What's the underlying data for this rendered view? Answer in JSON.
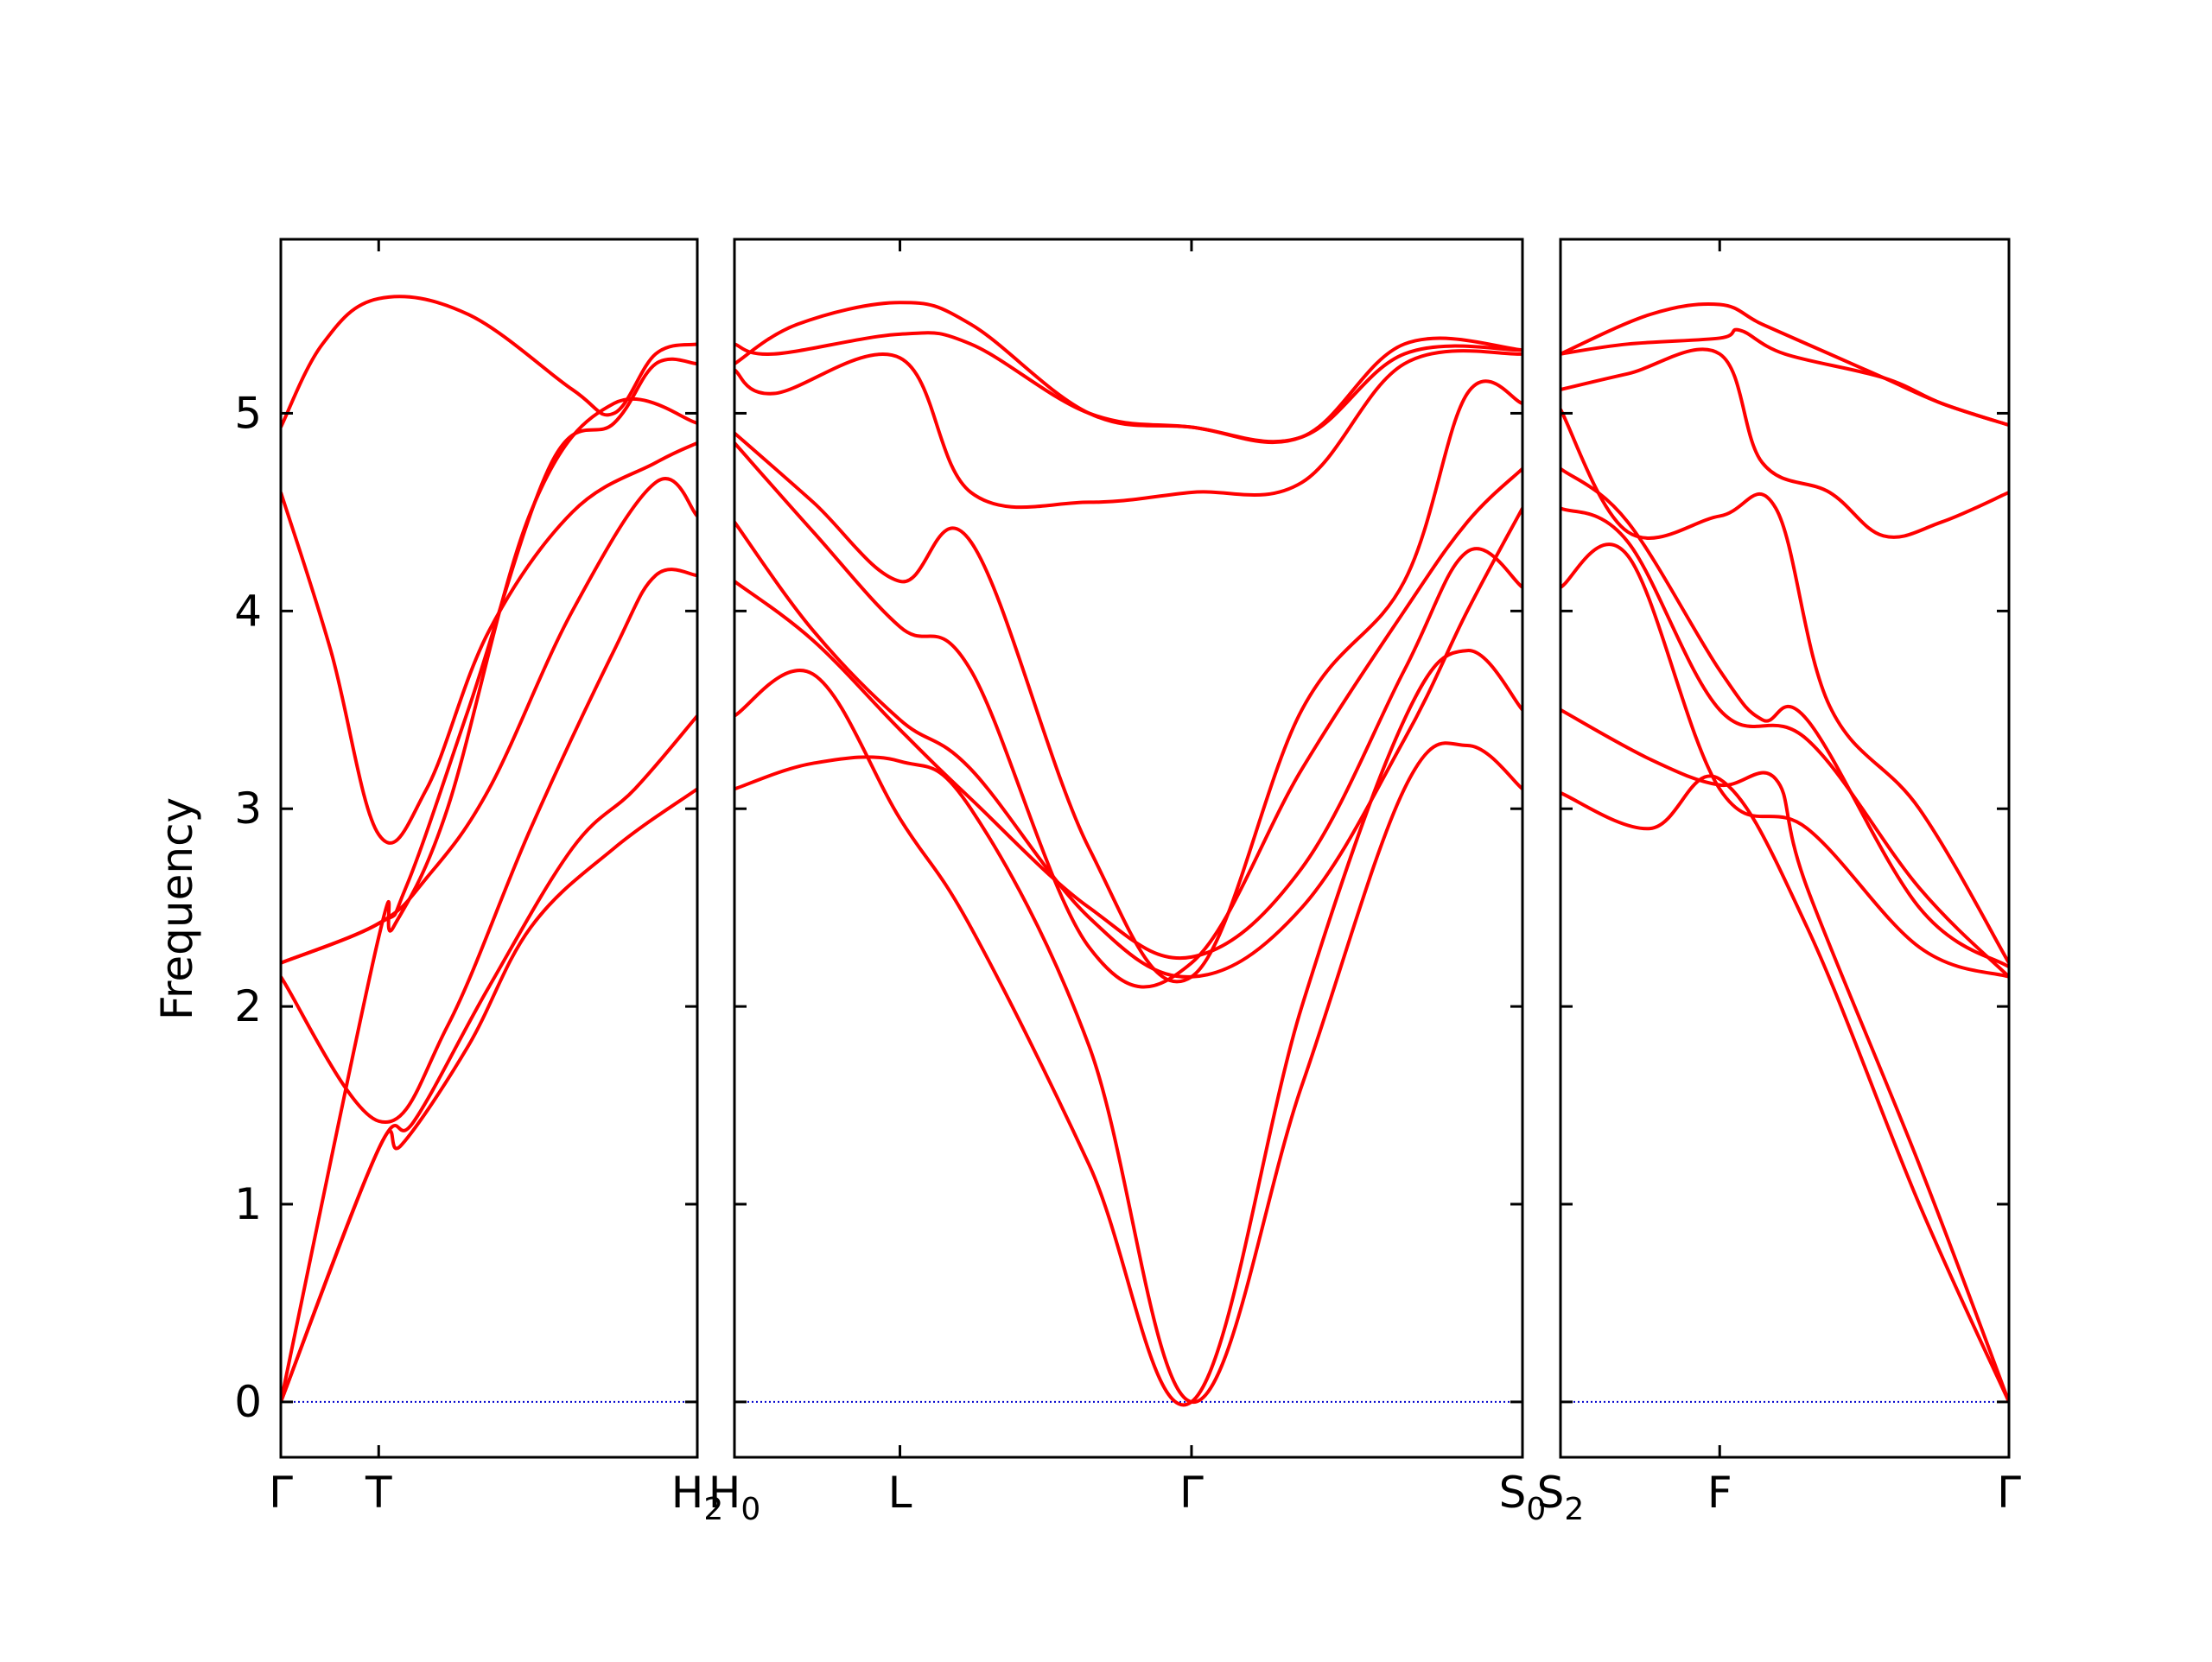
{
  "chart_data": {
    "type": "line",
    "ylabel": "Frequency",
    "ylim": [
      -0.28,
      5.88
    ],
    "yticks": [
      0,
      1,
      2,
      3,
      4,
      5
    ],
    "line_color": "#ff0000",
    "zero_line_color": "#0000cc",
    "panels": [
      {
        "xlim": [
          0,
          1
        ],
        "ticks": [
          {
            "x": 0,
            "label": "Γ"
          },
          {
            "x": 0.235,
            "label": "T"
          },
          {
            "x": 1,
            "label": "H",
            "sub": "2"
          }
        ],
        "series": [
          {
            "values": [
              [
                0,
                0
              ],
              [
                0.235,
                1.28
              ],
              [
                0.29,
                1.3
              ],
              [
                0.45,
                1.8
              ],
              [
                0.6,
                2.4
              ],
              [
                0.8,
                2.8
              ],
              [
                1,
                3.1
              ]
            ]
          },
          {
            "values": [
              [
                0,
                0
              ],
              [
                0.235,
                1.28
              ],
              [
                0.32,
                1.42
              ],
              [
                0.5,
                2.1
              ],
              [
                0.7,
                2.8
              ],
              [
                0.85,
                3.1
              ],
              [
                1,
                3.47
              ]
            ]
          },
          {
            "values": [
              [
                0,
                0
              ],
              [
                0.235,
                2.35
              ],
              [
                0.27,
                2.4
              ],
              [
                0.4,
                3.0
              ],
              [
                0.6,
                4.5
              ],
              [
                0.8,
                5.05
              ],
              [
                1,
                4.95
              ]
            ]
          },
          {
            "values": [
              [
                0,
                2.15
              ],
              [
                0.235,
                1.42
              ],
              [
                0.4,
                1.9
              ],
              [
                0.6,
                2.9
              ],
              [
                0.8,
                3.8
              ],
              [
                0.9,
                4.18
              ],
              [
                1,
                4.18
              ]
            ]
          },
          {
            "values": [
              [
                0,
                2.22
              ],
              [
                0.235,
                2.42
              ],
              [
                0.35,
                2.65
              ],
              [
                0.5,
                3.1
              ],
              [
                0.7,
                4.0
              ],
              [
                0.9,
                4.65
              ],
              [
                1,
                4.48
              ]
            ]
          },
          {
            "values": [
              [
                0,
                4.6
              ],
              [
                0.12,
                3.8
              ],
              [
                0.235,
                2.87
              ],
              [
                0.35,
                3.1
              ],
              [
                0.5,
                3.9
              ],
              [
                0.7,
                4.5
              ],
              [
                0.9,
                4.75
              ],
              [
                1,
                4.85
              ]
            ]
          },
          {
            "values": [
              [
                0,
                2.22
              ],
              [
                0.235,
                2.42
              ],
              [
                0.3,
                2.6
              ],
              [
                0.45,
                3.5
              ],
              [
                0.65,
                4.75
              ],
              [
                0.8,
                4.95
              ],
              [
                0.9,
                5.25
              ],
              [
                1,
                5.25
              ]
            ]
          },
          {
            "values": [
              [
                0,
                4.93
              ],
              [
                0.1,
                5.35
              ],
              [
                0.235,
                5.58
              ],
              [
                0.45,
                5.5
              ],
              [
                0.7,
                5.12
              ],
              [
                0.8,
                5.0
              ],
              [
                0.9,
                5.3
              ],
              [
                1,
                5.35
              ]
            ]
          }
        ]
      },
      {
        "xlim": [
          0,
          1
        ],
        "ticks": [
          {
            "x": 0,
            "label": "H",
            "sub": "0"
          },
          {
            "x": 0.21,
            "label": "L"
          },
          {
            "x": 0.58,
            "label": "Γ"
          },
          {
            "x": 1,
            "label": "S",
            "sub": "0"
          }
        ],
        "series": [
          {
            "values": [
              [
                0,
                3.1
              ],
              [
                0.1,
                3.23
              ],
              [
                0.21,
                3.24
              ],
              [
                0.3,
                3.0
              ],
              [
                0.45,
                1.8
              ],
              [
                0.58,
                0
              ],
              [
                0.72,
                1.6
              ],
              [
                0.85,
                3.1
              ],
              [
                0.93,
                3.32
              ],
              [
                1,
                3.1
              ]
            ]
          },
          {
            "values": [
              [
                0,
                3.47
              ],
              [
                0.1,
                3.68
              ],
              [
                0.21,
                2.95
              ],
              [
                0.3,
                2.4
              ],
              [
                0.45,
                1.2
              ],
              [
                0.58,
                0
              ],
              [
                0.72,
                2.0
              ],
              [
                0.85,
                3.45
              ],
              [
                0.93,
                3.8
              ],
              [
                1,
                3.5
              ]
            ]
          },
          {
            "values": [
              [
                0,
                4.15
              ],
              [
                0.1,
                3.85
              ],
              [
                0.21,
                3.4
              ],
              [
                0.3,
                3.05
              ],
              [
                0.45,
                2.5
              ],
              [
                0.58,
                2.25
              ],
              [
                0.72,
                2.7
              ],
              [
                0.85,
                3.7
              ],
              [
                0.93,
                4.3
              ],
              [
                1,
                4.12
              ]
            ]
          },
          {
            "values": [
              [
                0,
                4.45
              ],
              [
                0.1,
                3.9
              ],
              [
                0.21,
                3.45
              ],
              [
                0.3,
                3.2
              ],
              [
                0.45,
                2.45
              ],
              [
                0.58,
                2.15
              ],
              [
                0.72,
                2.5
              ],
              [
                0.85,
                3.35
              ],
              [
                0.93,
                4.0
              ],
              [
                1,
                4.52
              ]
            ]
          },
          {
            "values": [
              [
                0,
                4.85
              ],
              [
                0.1,
                4.4
              ],
              [
                0.21,
                3.92
              ],
              [
                0.3,
                3.7
              ],
              [
                0.45,
                2.3
              ],
              [
                0.58,
                2.22
              ],
              [
                0.72,
                3.2
              ],
              [
                0.85,
                4.0
              ],
              [
                0.93,
                4.45
              ],
              [
                1,
                4.72
              ]
            ]
          },
          {
            "values": [
              [
                0,
                4.9
              ],
              [
                0.1,
                4.55
              ],
              [
                0.21,
                4.15
              ],
              [
                0.3,
                4.35
              ],
              [
                0.45,
                2.8
              ],
              [
                0.58,
                2.15
              ],
              [
                0.72,
                3.5
              ],
              [
                0.85,
                4.15
              ],
              [
                0.93,
                5.1
              ],
              [
                1,
                5.05
              ]
            ]
          },
          {
            "values": [
              [
                0,
                5.22
              ],
              [
                0.05,
                5.1
              ],
              [
                0.21,
                5.28
              ],
              [
                0.3,
                4.6
              ],
              [
                0.45,
                4.55
              ],
              [
                0.58,
                4.6
              ],
              [
                0.72,
                4.65
              ],
              [
                0.85,
                5.25
              ],
              [
                1,
                5.3
              ]
            ]
          },
          {
            "values": [
              [
                0,
                5.35
              ],
              [
                0.05,
                5.3
              ],
              [
                0.21,
                5.4
              ],
              [
                0.3,
                5.35
              ],
              [
                0.45,
                5.0
              ],
              [
                0.58,
                4.93
              ],
              [
                0.72,
                4.88
              ],
              [
                0.85,
                5.35
              ],
              [
                1,
                5.32
              ]
            ]
          },
          {
            "values": [
              [
                0,
                5.25
              ],
              [
                0.08,
                5.45
              ],
              [
                0.21,
                5.56
              ],
              [
                0.3,
                5.45
              ],
              [
                0.45,
                5.0
              ],
              [
                0.58,
                4.93
              ],
              [
                0.72,
                4.88
              ],
              [
                0.85,
                5.3
              ],
              [
                1,
                5.32
              ]
            ]
          }
        ]
      },
      {
        "xlim": [
          0,
          1
        ],
        "ticks": [
          {
            "x": 0,
            "label": "S",
            "sub": "2"
          },
          {
            "x": 0.355,
            "label": "F"
          },
          {
            "x": 1,
            "label": "Γ"
          }
        ],
        "series": [
          {
            "values": [
              [
                0,
                3.08
              ],
              [
                0.2,
                2.9
              ],
              [
                0.355,
                3.15
              ],
              [
                0.55,
                2.4
              ],
              [
                0.8,
                1.0
              ],
              [
                1,
                0
              ]
            ]
          },
          {
            "values": [
              [
                0,
                3.5
              ],
              [
                0.2,
                3.25
              ],
              [
                0.355,
                3.12
              ],
              [
                0.48,
                3.15
              ],
              [
                0.55,
                2.6
              ],
              [
                0.8,
                1.2
              ],
              [
                1,
                0
              ]
            ]
          },
          {
            "values": [
              [
                0,
                4.12
              ],
              [
                0.15,
                4.28
              ],
              [
                0.355,
                3.1
              ],
              [
                0.55,
                2.9
              ],
              [
                0.8,
                2.3
              ],
              [
                1,
                2.15
              ]
            ]
          },
          {
            "values": [
              [
                0,
                4.52
              ],
              [
                0.15,
                4.35
              ],
              [
                0.355,
                3.5
              ],
              [
                0.55,
                3.35
              ],
              [
                0.8,
                2.6
              ],
              [
                1,
                2.15
              ]
            ]
          },
          {
            "values": [
              [
                0,
                4.72
              ],
              [
                0.15,
                4.45
              ],
              [
                0.355,
                3.7
              ],
              [
                0.45,
                3.45
              ],
              [
                0.55,
                3.45
              ],
              [
                0.8,
                2.5
              ],
              [
                1,
                2.2
              ]
            ]
          },
          {
            "values": [
              [
                0,
                5.02
              ],
              [
                0.15,
                4.4
              ],
              [
                0.355,
                4.48
              ],
              [
                0.48,
                4.52
              ],
              [
                0.6,
                3.52
              ],
              [
                0.8,
                3.0
              ],
              [
                1,
                2.22
              ]
            ]
          },
          {
            "values": [
              [
                0,
                5.12
              ],
              [
                0.15,
                5.2
              ],
              [
                0.355,
                5.3
              ],
              [
                0.45,
                4.75
              ],
              [
                0.6,
                4.6
              ],
              [
                0.72,
                4.38
              ],
              [
                0.85,
                4.45
              ],
              [
                1,
                4.6
              ]
            ]
          },
          {
            "values": [
              [
                0,
                5.3
              ],
              [
                0.15,
                5.35
              ],
              [
                0.355,
                5.38
              ],
              [
                0.4,
                5.42
              ],
              [
                0.5,
                5.3
              ],
              [
                0.72,
                5.18
              ],
              [
                0.85,
                5.05
              ],
              [
                1,
                4.94
              ]
            ]
          },
          {
            "values": [
              [
                0,
                5.3
              ],
              [
                0.2,
                5.5
              ],
              [
                0.355,
                5.55
              ],
              [
                0.45,
                5.45
              ],
              [
                0.6,
                5.3
              ],
              [
                0.72,
                5.18
              ],
              [
                0.85,
                5.05
              ],
              [
                1,
                4.94
              ]
            ]
          }
        ]
      }
    ]
  }
}
